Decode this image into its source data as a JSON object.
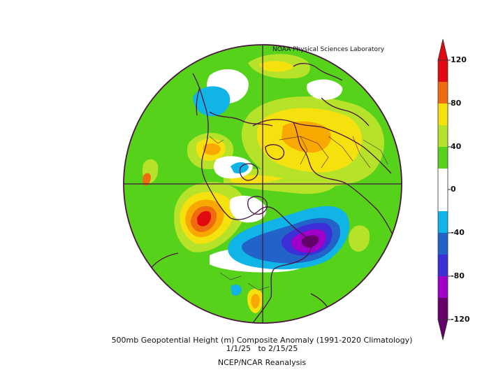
{
  "map": {
    "credit": "NOAA Physical Sciences Laboratory",
    "caption_line1": "500mb Geopotential Height (m) Composite Anomaly (1991-2020 Climatology)",
    "caption_line2": "1/1/25   to 2/15/25",
    "caption_line3": "NCEP/NCAR Reanalysis",
    "projection": "north polar stereographic",
    "colors": {
      "c_neg120": "#66006b",
      "c_neg100": "#a000c8",
      "c_neg80": "#3c2fd7",
      "c_neg60": "#2163c9",
      "c_neg40": "#10b4e6",
      "c_neg20": "#ffffff",
      "c_zero": "#ffffff",
      "c_pos20": "#56d21b",
      "c_pos40": "#b6e22a",
      "c_pos60": "#f5e10e",
      "c_pos80": "#f8a800",
      "c_pos100": "#f06a10",
      "c_pos120": "#e00a10",
      "outline": "#4a1440"
    }
  },
  "colorbar": {
    "labels": [
      "120",
      "80",
      "40",
      "0",
      "-40",
      "-80",
      "-120"
    ],
    "min": -120,
    "max": 120,
    "step": 20
  }
}
